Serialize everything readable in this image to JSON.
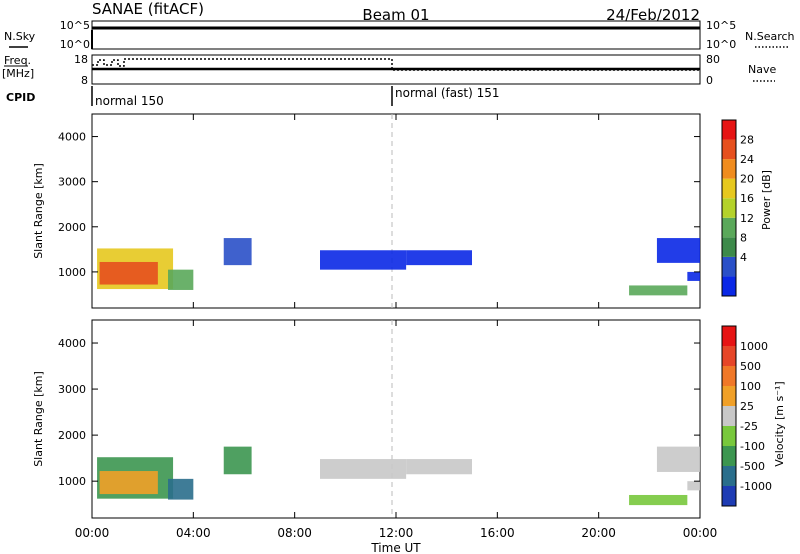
{
  "header": {
    "title": "SANAE (fitACF)",
    "beam": "Beam 01",
    "date": "24/Feb/2012"
  },
  "top_panels": {
    "nsky_label": "N.Sky",
    "nsky_ticks": [
      "10^5",
      "10^0"
    ],
    "nsearch_label": "N.Search",
    "nsearch_ticks": [
      "10^5",
      "10^0"
    ],
    "freq_label_1": "Freq.",
    "freq_label_2": "[MHz]",
    "freq_ticks": [
      "18",
      "8"
    ],
    "nave_label": "Nave",
    "nave_ticks": [
      "80",
      "0"
    ],
    "cpid_label": "CPID",
    "cpid_modes": [
      {
        "label": "normal 150",
        "start_hour": 0
      },
      {
        "label": "normal (fast) 151",
        "start_hour": 12
      }
    ]
  },
  "x_axis": {
    "label": "Time UT",
    "ticks": [
      "00:00",
      "04:00",
      "08:00",
      "12:00",
      "16:00",
      "20:00",
      "00:00"
    ],
    "range_hours": [
      0,
      24
    ]
  },
  "chart_data": [
    {
      "type": "heatmap",
      "panel": "power",
      "xlabel": "Time UT",
      "ylabel": "Slant Range [km]",
      "ylim": [
        200,
        4500
      ],
      "y_ticks": [
        "4000",
        "3000",
        "2000",
        "1000"
      ],
      "colorbar_label": "Power [dB]",
      "colorbar_ticks": [
        "28",
        "24",
        "20",
        "16",
        "12",
        "8",
        "4"
      ],
      "colors": [
        "#0a28e6",
        "#2a50c8",
        "#3d8a4a",
        "#5aa85a",
        "#b4d22a",
        "#e6c81e",
        "#f08c1e",
        "#e6501e",
        "#e61414"
      ],
      "blocks": [
        {
          "t0": 0.2,
          "t1": 3.2,
          "r0": 620,
          "r1": 1520,
          "level": 5
        },
        {
          "t0": 0.3,
          "t1": 2.6,
          "r0": 720,
          "r1": 1220,
          "level": 7
        },
        {
          "t0": 3.0,
          "t1": 4.0,
          "r0": 600,
          "r1": 1050,
          "level": 3
        },
        {
          "t0": 5.2,
          "t1": 6.3,
          "r0": 1150,
          "r1": 1750,
          "level": 1
        },
        {
          "t0": 9.0,
          "t1": 12.4,
          "r0": 1050,
          "r1": 1480,
          "level": 0
        },
        {
          "t0": 12.4,
          "t1": 15.0,
          "r0": 1150,
          "r1": 1480,
          "level": 0
        },
        {
          "t0": 22.3,
          "t1": 24.0,
          "r0": 1200,
          "r1": 1750,
          "level": 0
        },
        {
          "t0": 21.2,
          "t1": 23.5,
          "r0": 480,
          "r1": 700,
          "level": 3
        },
        {
          "t0": 23.5,
          "t1": 24.0,
          "r0": 800,
          "r1": 1000,
          "level": 0
        }
      ]
    },
    {
      "type": "heatmap",
      "panel": "velocity",
      "xlabel": "Time UT",
      "ylabel": "Slant Range [km]",
      "ylim": [
        200,
        4500
      ],
      "y_ticks": [
        "4000",
        "3000",
        "2000",
        "1000"
      ],
      "colorbar_label": "Velocity [m s⁻¹]",
      "colorbar_ticks": [
        "1000",
        "500",
        "100",
        "25",
        "-25",
        "-100",
        "-500",
        "-1000"
      ],
      "colors": [
        "#1e3cb4",
        "#2a6e8c",
        "#3c9650",
        "#78c83c",
        "#c8c8c8",
        "#f0a028",
        "#f07828",
        "#e64628",
        "#e61414"
      ],
      "blocks": [
        {
          "t0": 0.2,
          "t1": 3.2,
          "r0": 620,
          "r1": 1520,
          "level": 2
        },
        {
          "t0": 0.3,
          "t1": 2.6,
          "r0": 720,
          "r1": 1220,
          "level": 5
        },
        {
          "t0": 3.0,
          "t1": 4.0,
          "r0": 600,
          "r1": 1050,
          "level": 1
        },
        {
          "t0": 5.2,
          "t1": 6.3,
          "r0": 1150,
          "r1": 1750,
          "level": 2
        },
        {
          "t0": 9.0,
          "t1": 12.4,
          "r0": 1050,
          "r1": 1480,
          "level": 4
        },
        {
          "t0": 12.4,
          "t1": 15.0,
          "r0": 1150,
          "r1": 1480,
          "level": 4
        },
        {
          "t0": 22.3,
          "t1": 24.0,
          "r0": 1200,
          "r1": 1750,
          "level": 4
        },
        {
          "t0": 21.2,
          "t1": 23.5,
          "r0": 480,
          "r1": 700,
          "level": 3
        },
        {
          "t0": 23.5,
          "t1": 24.0,
          "r0": 800,
          "r1": 1000,
          "level": 4
        }
      ]
    }
  ]
}
